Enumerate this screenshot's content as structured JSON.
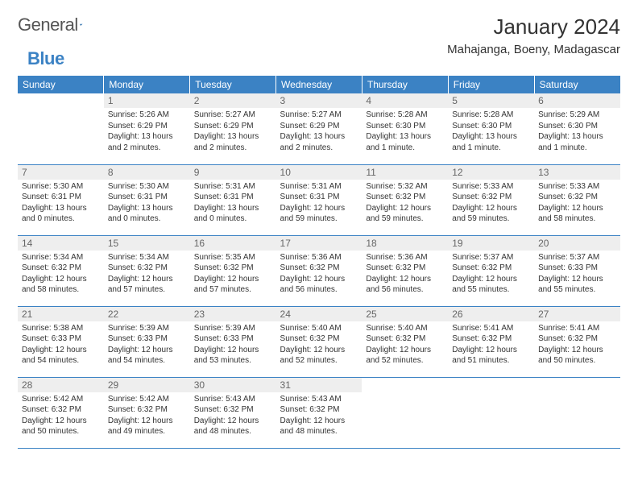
{
  "logo": {
    "part1": "General",
    "part2": "Blue"
  },
  "title": "January 2024",
  "location": "Mahajanga, Boeny, Madagascar",
  "colors": {
    "header_bg": "#3B82C4",
    "daynum_bg": "#eeeeee",
    "border": "#3B82C4"
  },
  "weekdays": [
    "Sunday",
    "Monday",
    "Tuesday",
    "Wednesday",
    "Thursday",
    "Friday",
    "Saturday"
  ],
  "weeks": [
    [
      {
        "n": "",
        "sr": "",
        "ss": "",
        "dl": ""
      },
      {
        "n": "1",
        "sr": "Sunrise: 5:26 AM",
        "ss": "Sunset: 6:29 PM",
        "dl": "Daylight: 13 hours and 2 minutes."
      },
      {
        "n": "2",
        "sr": "Sunrise: 5:27 AM",
        "ss": "Sunset: 6:29 PM",
        "dl": "Daylight: 13 hours and 2 minutes."
      },
      {
        "n": "3",
        "sr": "Sunrise: 5:27 AM",
        "ss": "Sunset: 6:29 PM",
        "dl": "Daylight: 13 hours and 2 minutes."
      },
      {
        "n": "4",
        "sr": "Sunrise: 5:28 AM",
        "ss": "Sunset: 6:30 PM",
        "dl": "Daylight: 13 hours and 1 minute."
      },
      {
        "n": "5",
        "sr": "Sunrise: 5:28 AM",
        "ss": "Sunset: 6:30 PM",
        "dl": "Daylight: 13 hours and 1 minute."
      },
      {
        "n": "6",
        "sr": "Sunrise: 5:29 AM",
        "ss": "Sunset: 6:30 PM",
        "dl": "Daylight: 13 hours and 1 minute."
      }
    ],
    [
      {
        "n": "7",
        "sr": "Sunrise: 5:30 AM",
        "ss": "Sunset: 6:31 PM",
        "dl": "Daylight: 13 hours and 0 minutes."
      },
      {
        "n": "8",
        "sr": "Sunrise: 5:30 AM",
        "ss": "Sunset: 6:31 PM",
        "dl": "Daylight: 13 hours and 0 minutes."
      },
      {
        "n": "9",
        "sr": "Sunrise: 5:31 AM",
        "ss": "Sunset: 6:31 PM",
        "dl": "Daylight: 13 hours and 0 minutes."
      },
      {
        "n": "10",
        "sr": "Sunrise: 5:31 AM",
        "ss": "Sunset: 6:31 PM",
        "dl": "Daylight: 12 hours and 59 minutes."
      },
      {
        "n": "11",
        "sr": "Sunrise: 5:32 AM",
        "ss": "Sunset: 6:32 PM",
        "dl": "Daylight: 12 hours and 59 minutes."
      },
      {
        "n": "12",
        "sr": "Sunrise: 5:33 AM",
        "ss": "Sunset: 6:32 PM",
        "dl": "Daylight: 12 hours and 59 minutes."
      },
      {
        "n": "13",
        "sr": "Sunrise: 5:33 AM",
        "ss": "Sunset: 6:32 PM",
        "dl": "Daylight: 12 hours and 58 minutes."
      }
    ],
    [
      {
        "n": "14",
        "sr": "Sunrise: 5:34 AM",
        "ss": "Sunset: 6:32 PM",
        "dl": "Daylight: 12 hours and 58 minutes."
      },
      {
        "n": "15",
        "sr": "Sunrise: 5:34 AM",
        "ss": "Sunset: 6:32 PM",
        "dl": "Daylight: 12 hours and 57 minutes."
      },
      {
        "n": "16",
        "sr": "Sunrise: 5:35 AM",
        "ss": "Sunset: 6:32 PM",
        "dl": "Daylight: 12 hours and 57 minutes."
      },
      {
        "n": "17",
        "sr": "Sunrise: 5:36 AM",
        "ss": "Sunset: 6:32 PM",
        "dl": "Daylight: 12 hours and 56 minutes."
      },
      {
        "n": "18",
        "sr": "Sunrise: 5:36 AM",
        "ss": "Sunset: 6:32 PM",
        "dl": "Daylight: 12 hours and 56 minutes."
      },
      {
        "n": "19",
        "sr": "Sunrise: 5:37 AM",
        "ss": "Sunset: 6:32 PM",
        "dl": "Daylight: 12 hours and 55 minutes."
      },
      {
        "n": "20",
        "sr": "Sunrise: 5:37 AM",
        "ss": "Sunset: 6:33 PM",
        "dl": "Daylight: 12 hours and 55 minutes."
      }
    ],
    [
      {
        "n": "21",
        "sr": "Sunrise: 5:38 AM",
        "ss": "Sunset: 6:33 PM",
        "dl": "Daylight: 12 hours and 54 minutes."
      },
      {
        "n": "22",
        "sr": "Sunrise: 5:39 AM",
        "ss": "Sunset: 6:33 PM",
        "dl": "Daylight: 12 hours and 54 minutes."
      },
      {
        "n": "23",
        "sr": "Sunrise: 5:39 AM",
        "ss": "Sunset: 6:33 PM",
        "dl": "Daylight: 12 hours and 53 minutes."
      },
      {
        "n": "24",
        "sr": "Sunrise: 5:40 AM",
        "ss": "Sunset: 6:32 PM",
        "dl": "Daylight: 12 hours and 52 minutes."
      },
      {
        "n": "25",
        "sr": "Sunrise: 5:40 AM",
        "ss": "Sunset: 6:32 PM",
        "dl": "Daylight: 12 hours and 52 minutes."
      },
      {
        "n": "26",
        "sr": "Sunrise: 5:41 AM",
        "ss": "Sunset: 6:32 PM",
        "dl": "Daylight: 12 hours and 51 minutes."
      },
      {
        "n": "27",
        "sr": "Sunrise: 5:41 AM",
        "ss": "Sunset: 6:32 PM",
        "dl": "Daylight: 12 hours and 50 minutes."
      }
    ],
    [
      {
        "n": "28",
        "sr": "Sunrise: 5:42 AM",
        "ss": "Sunset: 6:32 PM",
        "dl": "Daylight: 12 hours and 50 minutes."
      },
      {
        "n": "29",
        "sr": "Sunrise: 5:42 AM",
        "ss": "Sunset: 6:32 PM",
        "dl": "Daylight: 12 hours and 49 minutes."
      },
      {
        "n": "30",
        "sr": "Sunrise: 5:43 AM",
        "ss": "Sunset: 6:32 PM",
        "dl": "Daylight: 12 hours and 48 minutes."
      },
      {
        "n": "31",
        "sr": "Sunrise: 5:43 AM",
        "ss": "Sunset: 6:32 PM",
        "dl": "Daylight: 12 hours and 48 minutes."
      },
      {
        "n": "",
        "sr": "",
        "ss": "",
        "dl": ""
      },
      {
        "n": "",
        "sr": "",
        "ss": "",
        "dl": ""
      },
      {
        "n": "",
        "sr": "",
        "ss": "",
        "dl": ""
      }
    ]
  ]
}
